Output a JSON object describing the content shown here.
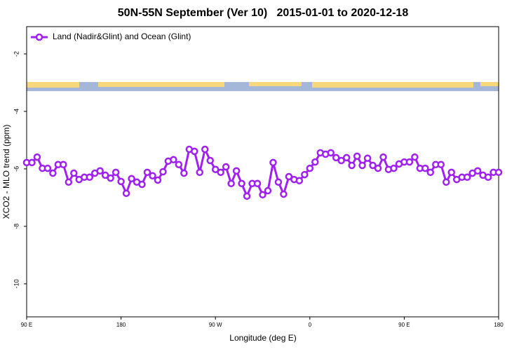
{
  "chart_data": {
    "type": "line",
    "title": "50N-55N September (Ver 10)   2015-01-01 to 2020-12-18",
    "x_label": "Longitude (deg E)",
    "y_label": "XCO2 - MLO trend (ppm)",
    "legend": "top-left",
    "x": [
      90,
      95,
      100,
      105,
      110,
      115,
      120,
      125,
      130,
      135,
      140,
      145,
      150,
      155,
      160,
      165,
      170,
      175,
      180,
      185,
      190,
      195,
      200,
      205,
      210,
      215,
      220,
      225,
      230,
      235,
      240,
      245,
      250,
      255,
      260,
      265,
      270,
      275,
      280,
      285,
      290,
      295,
      300,
      305,
      310,
      315,
      320,
      325,
      330,
      335,
      340,
      345,
      350,
      355,
      360,
      365,
      370,
      375,
      380,
      385,
      390,
      395,
      400,
      405,
      410,
      415,
      420,
      425,
      430,
      435,
      440,
      445,
      450,
      455,
      460,
      465,
      470,
      475,
      480,
      485,
      490,
      495,
      500,
      505,
      510,
      515,
      520,
      525,
      530,
      535,
      540
    ],
    "series": [
      {
        "name": "Land (Nadir&Glint) and Ocean (Glint)",
        "color": "#a020f0",
        "values": [
          -5.78,
          -5.78,
          -5.59,
          -5.98,
          -5.98,
          -6.15,
          -5.85,
          -5.85,
          -6.46,
          -6.15,
          -6.37,
          -6.29,
          -6.29,
          -6.15,
          -6.07,
          -6.22,
          -6.32,
          -6.12,
          -6.44,
          -6.85,
          -6.34,
          -6.46,
          -6.54,
          -6.12,
          -6.24,
          -6.39,
          -6.1,
          -5.73,
          -5.68,
          -5.85,
          -6.15,
          -5.32,
          -5.39,
          -6.12,
          -5.32,
          -5.71,
          -6.02,
          -6.12,
          -5.93,
          -6.51,
          -6.07,
          -6.51,
          -6.95,
          -6.51,
          -6.51,
          -6.9,
          -6.76,
          -5.78,
          -6.46,
          -6.88,
          -6.27,
          -6.37,
          -6.41,
          -6.2,
          -5.98,
          -5.76,
          -5.44,
          -5.49,
          -5.44,
          -5.61,
          -5.71,
          -5.61,
          -5.88,
          -5.56,
          -5.88,
          -5.63,
          -5.88,
          -5.98,
          -5.59,
          -6.02,
          -5.98,
          -5.83,
          -5.76,
          -5.76,
          -5.59,
          -5.98,
          -5.98,
          -6.12,
          -5.85,
          -5.85,
          -6.46,
          -6.12,
          -6.37,
          -6.29,
          -6.29,
          -6.15,
          -6.07,
          -6.22,
          -6.29,
          -6.12,
          -6.12
        ]
      }
    ],
    "xlim": [
      90,
      540
    ],
    "xticks": [
      {
        "value": 90,
        "label": "90 E"
      },
      180,
      {
        "value": 270,
        "label": "90 W"
      },
      {
        "value": 360,
        "label": "0"
      },
      {
        "value": 450,
        "label": "90 E"
      },
      {
        "value": 540,
        "label": "180"
      }
    ],
    "ylim": [
      -11.15,
      -1.05
    ],
    "yticks": [
      -2,
      -4,
      -6,
      -8,
      -10
    ]
  }
}
